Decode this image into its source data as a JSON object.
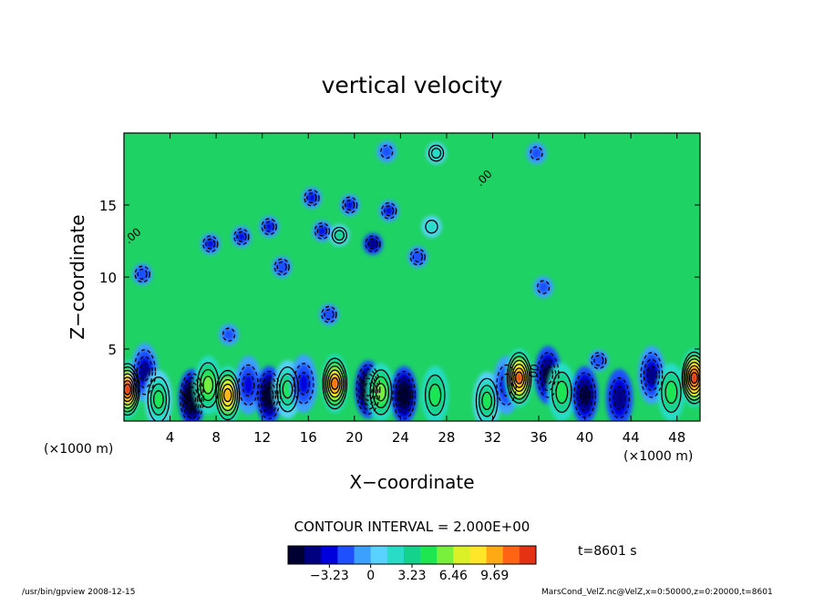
{
  "chart_data": {
    "type": "heatmap",
    "title": "vertical velocity",
    "xlabel": "X−coordinate",
    "ylabel": "Z−coordinate",
    "x_unit_left": "(×1000 m)",
    "x_unit_right": "(×1000 m)",
    "xlim": [
      0,
      50
    ],
    "ylim": [
      0,
      20
    ],
    "xticks": [
      4,
      8,
      12,
      16,
      20,
      24,
      28,
      32,
      36,
      40,
      44,
      48
    ],
    "xtick_labels": [
      "4",
      "8",
      "12",
      "16",
      "20",
      "24",
      "28",
      "32",
      "36",
      "40",
      "44",
      "48"
    ],
    "yticks": [
      5,
      10,
      15
    ],
    "ytick_labels": [
      "5",
      "10",
      "15"
    ],
    "contour_interval": "CONTOUR INTERVAL = 2.000E+00",
    "contour_label": ".00",
    "colorbar": {
      "range": [
        -6.46,
        12.92
      ],
      "tick_values": [
        -3.23,
        0,
        3.23,
        6.46,
        9.69
      ],
      "tick_labels": [
        "−3.23",
        "0",
        "3.23",
        "6.46",
        "9.69"
      ],
      "colors": [
        "#000033",
        "#000080",
        "#0000dd",
        "#1e50ff",
        "#3ca0ff",
        "#5ad2ff",
        "#28dcc8",
        "#14d28c",
        "#1ee650",
        "#78f03c",
        "#dcf028",
        "#ffe628",
        "#ffaa14",
        "#ff6414",
        "#e63214"
      ]
    },
    "near_surface_cells": [
      {
        "x": 0.3,
        "z": 2.2,
        "w": 12.5
      },
      {
        "x": 1.8,
        "z": 3.4,
        "w": -5
      },
      {
        "x": 3.0,
        "z": 1.5,
        "w": 5
      },
      {
        "x": 5.9,
        "z": 1.6,
        "w": -10
      },
      {
        "x": 7.3,
        "z": 2.5,
        "w": 6
      },
      {
        "x": 9.0,
        "z": 1.8,
        "w": 10
      },
      {
        "x": 10.8,
        "z": 2.5,
        "w": -3
      },
      {
        "x": 12.6,
        "z": 1.8,
        "w": -8
      },
      {
        "x": 14.2,
        "z": 2.2,
        "w": 5
      },
      {
        "x": 15.6,
        "z": 2.6,
        "w": -3
      },
      {
        "x": 18.3,
        "z": 2.6,
        "w": 11
      },
      {
        "x": 21.2,
        "z": 2.2,
        "w": -10
      },
      {
        "x": 22.3,
        "z": 2.0,
        "w": 6
      },
      {
        "x": 24.3,
        "z": 1.8,
        "w": -8
      },
      {
        "x": 27.0,
        "z": 1.8,
        "w": 4
      },
      {
        "x": 31.5,
        "z": 1.4,
        "w": 5
      },
      {
        "x": 33.2,
        "z": 2.5,
        "w": -3
      },
      {
        "x": 34.3,
        "z": 3.0,
        "w": 12
      },
      {
        "x": 36.8,
        "z": 3.2,
        "w": -6
      },
      {
        "x": 38.0,
        "z": 2.0,
        "w": 4
      },
      {
        "x": 40.0,
        "z": 1.8,
        "w": -6
      },
      {
        "x": 43.0,
        "z": 1.6,
        "w": -4
      },
      {
        "x": 45.8,
        "z": 3.2,
        "w": -5
      },
      {
        "x": 47.5,
        "z": 2.0,
        "w": 4
      },
      {
        "x": 49.5,
        "z": 3.0,
        "w": 13
      }
    ],
    "aloft_cells": [
      {
        "x": 7.5,
        "z": 12.3,
        "w": -3
      },
      {
        "x": 10.2,
        "z": 12.8,
        "w": -3.5
      },
      {
        "x": 12.6,
        "z": 13.5,
        "w": -3
      },
      {
        "x": 13.7,
        "z": 10.7,
        "w": -2.5
      },
      {
        "x": 16.3,
        "z": 15.5,
        "w": -3
      },
      {
        "x": 17.2,
        "z": 13.2,
        "w": -3
      },
      {
        "x": 18.7,
        "z": 12.9,
        "w": 3
      },
      {
        "x": 19.6,
        "z": 15.0,
        "w": -3
      },
      {
        "x": 21.6,
        "z": 12.3,
        "w": -4
      },
      {
        "x": 23.0,
        "z": 14.6,
        "w": -3
      },
      {
        "x": 25.5,
        "z": 11.4,
        "w": -2.5
      },
      {
        "x": 26.7,
        "z": 13.5,
        "w": 2
      },
      {
        "x": 17.8,
        "z": 7.4,
        "w": -2.5
      },
      {
        "x": 9.1,
        "z": 6.0,
        "w": -2
      },
      {
        "x": 1.6,
        "z": 10.2,
        "w": -2.5
      },
      {
        "x": 36.4,
        "z": 9.3,
        "w": -2
      },
      {
        "x": 41.2,
        "z": 4.2,
        "w": -2.5
      },
      {
        "x": 22.8,
        "z": 18.7,
        "w": -2
      },
      {
        "x": 35.8,
        "z": 18.6,
        "w": -2
      },
      {
        "x": 27.1,
        "z": 18.6,
        "w": 2.5
      }
    ],
    "time_label": "t=8601 s"
  },
  "footer": {
    "left": "/usr/bin/gpview   2008-12-15",
    "right": "MarsCond_VelZ.nc@VelZ,x=0:50000,z=0:20000,t=8601"
  }
}
